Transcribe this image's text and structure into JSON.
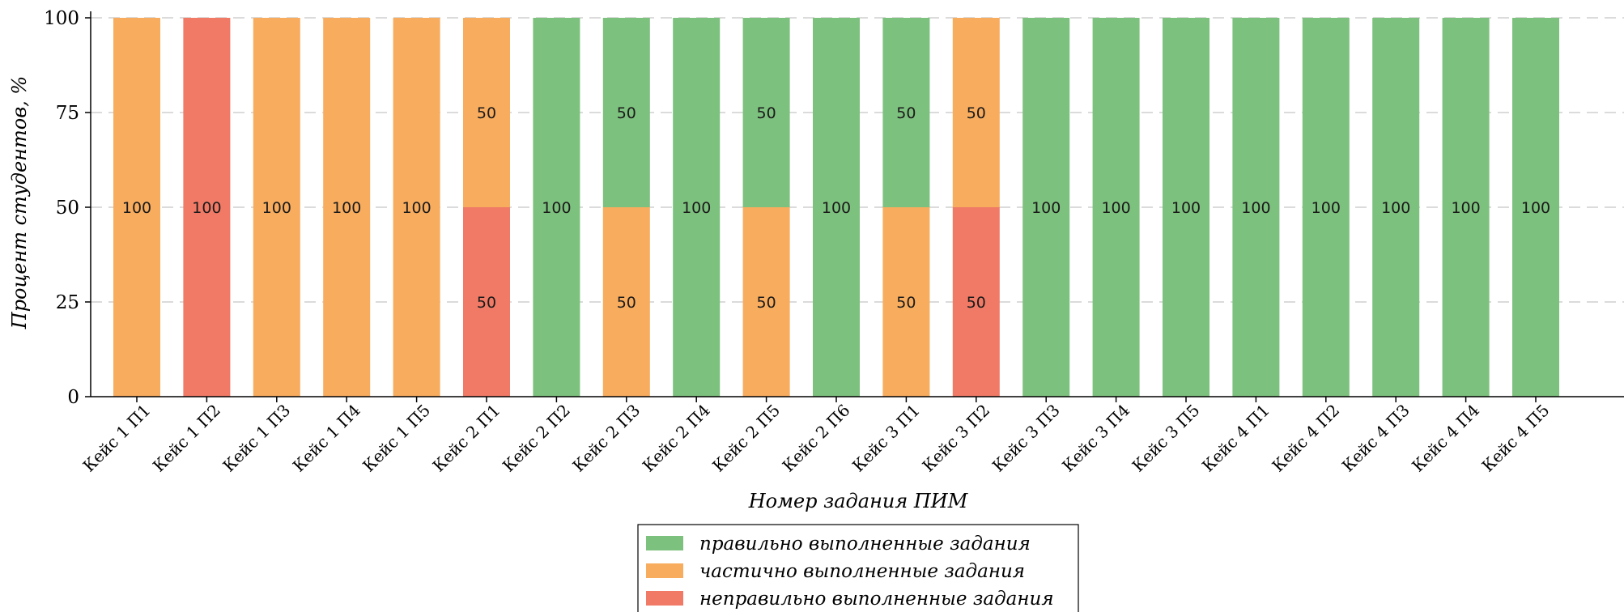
{
  "chart_data": {
    "type": "bar",
    "stacked": true,
    "title": "",
    "xlabel": "Номер задания ПИМ",
    "ylabel": "Процент студентов, %",
    "ylim": [
      0,
      100
    ],
    "yticks": [
      0,
      25,
      50,
      75,
      100
    ],
    "grid": "horizontal dashed",
    "legend_position": "bottom-center",
    "categories": [
      "Кейс 1 П1",
      "Кейс 1 П2",
      "Кейс 1 П3",
      "Кейс 1 П4",
      "Кейс 1 П5",
      "Кейс 2 П1",
      "Кейс 2 П2",
      "Кейс 2 П3",
      "Кейс 2 П4",
      "Кейс 2 П5",
      "Кейс 2 П6",
      "Кейс 3 П1",
      "Кейс 3 П2",
      "Кейс 3 П3",
      "Кейс 3 П4",
      "Кейс 3 П5",
      "Кейс 4 П1",
      "Кейс 4 П2",
      "Кейс 4 П3",
      "Кейс 4 П4",
      "Кейс 4 П5"
    ],
    "series": [
      {
        "name": "неправильно выполненные задания",
        "color": "#F07A66",
        "values": [
          0,
          100,
          0,
          0,
          0,
          50,
          0,
          0,
          0,
          0,
          0,
          0,
          50,
          0,
          0,
          0,
          0,
          0,
          0,
          0,
          0
        ]
      },
      {
        "name": "частично выполненные задания",
        "color": "#F8AC5E",
        "values": [
          100,
          0,
          100,
          100,
          100,
          50,
          0,
          50,
          0,
          50,
          0,
          50,
          50,
          0,
          0,
          0,
          0,
          0,
          0,
          0,
          0
        ]
      },
      {
        "name": "правильно выполненные задания",
        "color": "#7DC17E",
        "values": [
          0,
          0,
          0,
          0,
          0,
          0,
          100,
          50,
          100,
          50,
          100,
          50,
          0,
          100,
          100,
          100,
          100,
          100,
          100,
          100,
          100
        ]
      }
    ],
    "legend_order": [
      2,
      1,
      0
    ]
  }
}
